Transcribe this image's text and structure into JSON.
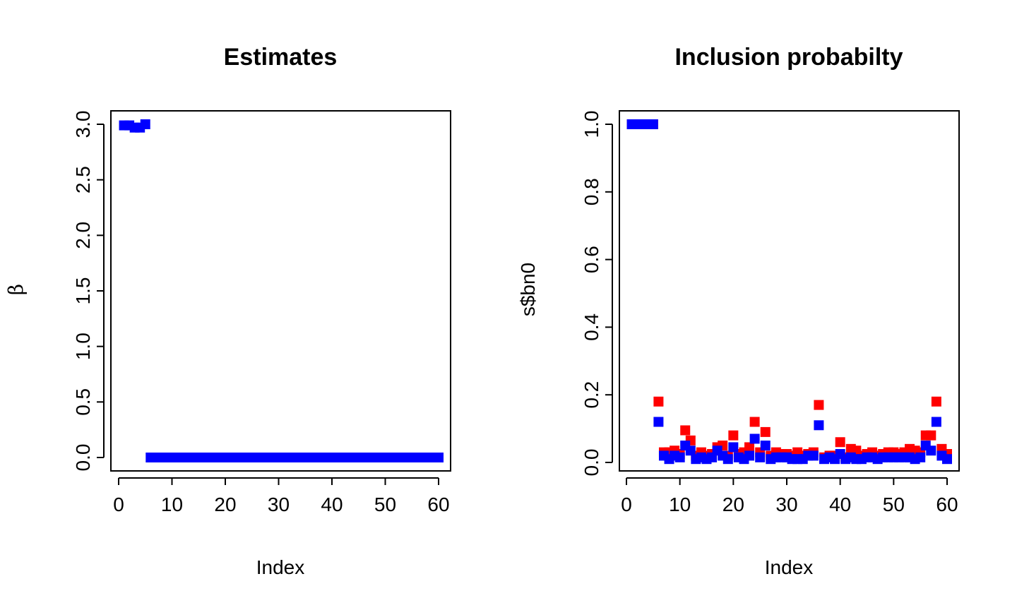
{
  "colors": {
    "blue": "#0000ff",
    "red": "#ff0000",
    "axis": "#000000"
  },
  "chart_data": [
    {
      "type": "scatter",
      "title": "Estimates",
      "xlabel": "Index",
      "ylabel": "β",
      "xlim": [
        0,
        61
      ],
      "ylim": [
        0,
        3
      ],
      "xticks": [
        "0",
        "10",
        "20",
        "30",
        "40",
        "50",
        "60"
      ],
      "yticks": [
        "0.0",
        "0.5",
        "1.0",
        "1.5",
        "2.0",
        "2.5",
        "3.0"
      ],
      "grid": false,
      "marker": "square",
      "series": [
        {
          "color": "#0000ff",
          "x": [
            1,
            2,
            3,
            4,
            5,
            6,
            7,
            8,
            9,
            10,
            11,
            12,
            13,
            14,
            15,
            16,
            17,
            18,
            19,
            20,
            21,
            22,
            23,
            24,
            25,
            26,
            27,
            28,
            29,
            30,
            31,
            32,
            33,
            34,
            35,
            36,
            37,
            38,
            39,
            40,
            41,
            42,
            43,
            44,
            45,
            46,
            47,
            48,
            49,
            50,
            51,
            52,
            53,
            54,
            55,
            56,
            57,
            58,
            59,
            60
          ],
          "y": [
            2.99,
            2.99,
            2.97,
            2.97,
            3.0,
            0,
            0,
            0,
            0,
            0,
            0,
            0,
            0,
            0,
            0,
            0,
            0,
            0,
            0,
            0,
            0,
            0,
            0,
            0,
            0,
            0,
            0,
            0,
            0,
            0,
            0,
            0,
            0,
            0,
            0,
            0,
            0,
            0,
            0,
            0,
            0,
            0,
            0,
            0,
            0,
            0,
            0,
            0,
            0,
            0,
            0,
            0,
            0,
            0,
            0,
            0,
            0,
            0,
            0,
            0
          ]
        }
      ]
    },
    {
      "type": "scatter",
      "title": "Inclusion probabilty",
      "xlabel": "Index",
      "ylabel": "s$bn0",
      "xlim": [
        0,
        61
      ],
      "ylim": [
        0,
        1
      ],
      "xticks": [
        "0",
        "10",
        "20",
        "30",
        "40",
        "50",
        "60"
      ],
      "yticks": [
        "0.0",
        "0.2",
        "0.4",
        "0.6",
        "0.8",
        "1.0"
      ],
      "grid": false,
      "marker": "square",
      "series": [
        {
          "color": "#ff0000",
          "x": [
            1,
            2,
            3,
            4,
            5,
            6,
            7,
            8,
            9,
            10,
            11,
            12,
            13,
            14,
            15,
            16,
            17,
            18,
            19,
            20,
            21,
            22,
            23,
            24,
            25,
            26,
            27,
            28,
            29,
            30,
            31,
            32,
            33,
            34,
            35,
            36,
            37,
            38,
            39,
            40,
            41,
            42,
            43,
            44,
            45,
            46,
            47,
            48,
            49,
            50,
            51,
            52,
            53,
            54,
            55,
            56,
            57,
            58,
            59,
            60
          ],
          "y": [
            1,
            1,
            1,
            1,
            1,
            0.18,
            0.03,
            0.03,
            0.035,
            0.025,
            0.095,
            0.065,
            0.02,
            0.03,
            0.02,
            0.025,
            0.045,
            0.05,
            0.02,
            0.08,
            0.025,
            0.03,
            0.045,
            0.12,
            0.03,
            0.09,
            0.02,
            0.03,
            0.025,
            0.025,
            0.02,
            0.03,
            0.02,
            0.025,
            0.03,
            0.17,
            0.015,
            0.02,
            0.02,
            0.06,
            0.015,
            0.04,
            0.035,
            0.02,
            0.025,
            0.03,
            0.02,
            0.025,
            0.03,
            0.03,
            0.025,
            0.03,
            0.04,
            0.035,
            0.03,
            0.08,
            0.08,
            0.18,
            0.04,
            0.025
          ]
        },
        {
          "color": "#0000ff",
          "x": [
            1,
            2,
            3,
            4,
            5,
            6,
            7,
            8,
            9,
            10,
            11,
            12,
            13,
            14,
            15,
            16,
            17,
            18,
            19,
            20,
            21,
            22,
            23,
            24,
            25,
            26,
            27,
            28,
            29,
            30,
            31,
            32,
            33,
            34,
            35,
            36,
            37,
            38,
            39,
            40,
            41,
            42,
            43,
            44,
            45,
            46,
            47,
            48,
            49,
            50,
            51,
            52,
            53,
            54,
            55,
            56,
            57,
            58,
            59,
            60
          ],
          "y": [
            1,
            1,
            1,
            1,
            1,
            0.12,
            0.02,
            0.01,
            0.02,
            0.015,
            0.05,
            0.035,
            0.01,
            0.015,
            0.01,
            0.015,
            0.035,
            0.02,
            0.01,
            0.045,
            0.015,
            0.01,
            0.02,
            0.07,
            0.015,
            0.05,
            0.01,
            0.015,
            0.015,
            0.015,
            0.01,
            0.01,
            0.01,
            0.02,
            0.02,
            0.11,
            0.01,
            0.015,
            0.01,
            0.025,
            0.01,
            0.015,
            0.01,
            0.01,
            0.015,
            0.015,
            0.01,
            0.015,
            0.015,
            0.015,
            0.015,
            0.015,
            0.015,
            0.01,
            0.015,
            0.05,
            0.035,
            0.12,
            0.02,
            0.01
          ]
        }
      ]
    }
  ]
}
